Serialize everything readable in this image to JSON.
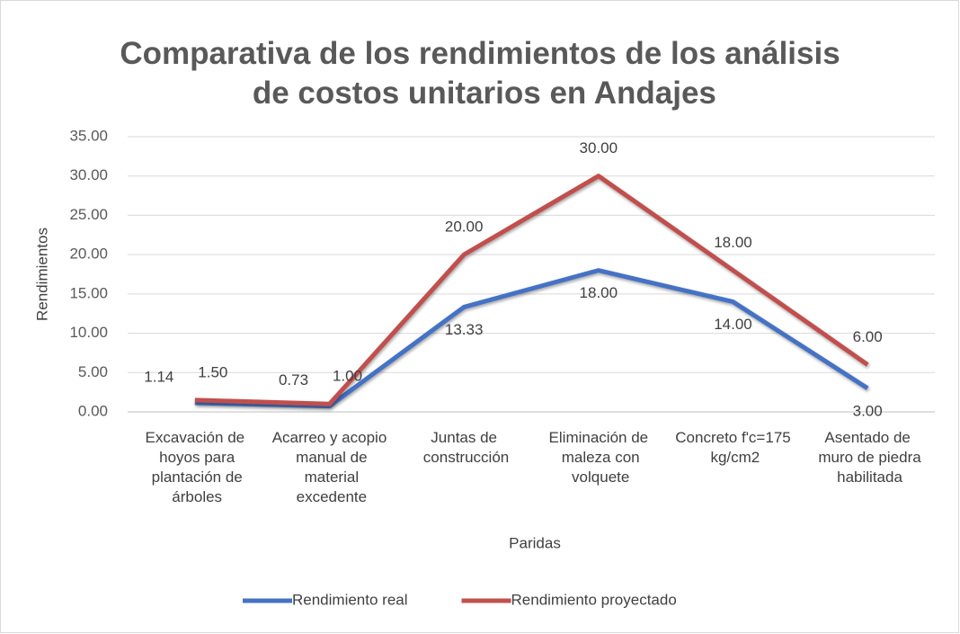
{
  "chart_data": {
    "type": "line",
    "title": "Comparativa de los rendimientos de los análisis de costos unitarios en Andajes",
    "x_label": "Paridas",
    "y_label": "Rendimientos",
    "categories": [
      "Excavación de hoyos para plantación de árboles",
      "Acarreo y acopio manual de material excedente",
      "Juntas de construcción",
      "Eliminación de maleza con volquete",
      "Concreto f'c=175 kg/cm2",
      "Asentado de muro de piedra habilitada"
    ],
    "series": [
      {
        "name": "Rendimiento real",
        "color": "#4472c4",
        "values": [
          1.14,
          0.73,
          13.33,
          18,
          14,
          3
        ],
        "value_labels": [
          "1.14",
          "0.73",
          "13.33",
          "18.00",
          "14.00",
          "3.00"
        ]
      },
      {
        "name": "Rendimiento proyectado",
        "color": "#c0504d",
        "values": [
          1.5,
          1,
          20,
          30,
          18,
          6
        ],
        "value_labels": [
          "1.50",
          "1.00",
          "20.00",
          "30.00",
          "18.00",
          "6.00"
        ]
      }
    ],
    "ylim": [
      0,
      35
    ],
    "yticks": [
      {
        "value": 0,
        "label": "0.00"
      },
      {
        "value": 5,
        "label": "5.00"
      },
      {
        "value": 10,
        "label": "10.00"
      },
      {
        "value": 15,
        "label": "15.00"
      },
      {
        "value": 20,
        "label": "20.00"
      },
      {
        "value": 25,
        "label": "25.00"
      },
      {
        "value": 30,
        "label": "30.00"
      },
      {
        "value": 35,
        "label": "35.00"
      }
    ],
    "grid": true,
    "legend": "bottom"
  }
}
